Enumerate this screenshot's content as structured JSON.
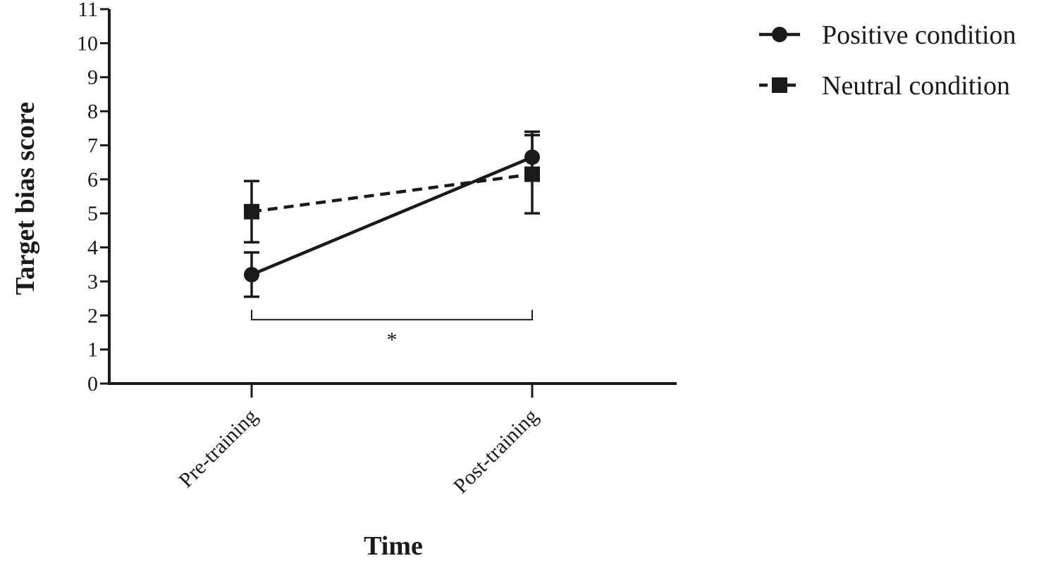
{
  "chart_data": {
    "type": "line",
    "title": "",
    "xlabel": "Time",
    "ylabel": "Target bias score",
    "categories": [
      "Pre-training",
      "Post-training"
    ],
    "ylim": [
      0,
      11
    ],
    "yticks": [
      "0",
      "1",
      "2",
      "3",
      "4",
      "5",
      "6",
      "7",
      "8",
      "9",
      "10",
      "11"
    ],
    "grid": false,
    "legend_position": "top-right",
    "series": [
      {
        "name": "Positive condition",
        "marker": "circle",
        "line_style": "solid",
        "color": "#1a1a1a",
        "values": [
          3.2,
          6.65
        ],
        "error_upper": [
          3.85,
          7.3
        ],
        "error_lower": [
          2.55,
          6.0
        ]
      },
      {
        "name": "Neutral condition",
        "marker": "square",
        "line_style": "dashed",
        "color": "#1a1a1a",
        "values": [
          5.05,
          6.15
        ],
        "error_upper": [
          5.95,
          7.4
        ],
        "error_lower": [
          4.15,
          5.0
        ]
      }
    ],
    "annotations": [
      {
        "type": "significance-bracket",
        "from_category": "Pre-training",
        "to_category": "Post-training",
        "y": 2.0,
        "text": "*"
      }
    ]
  }
}
